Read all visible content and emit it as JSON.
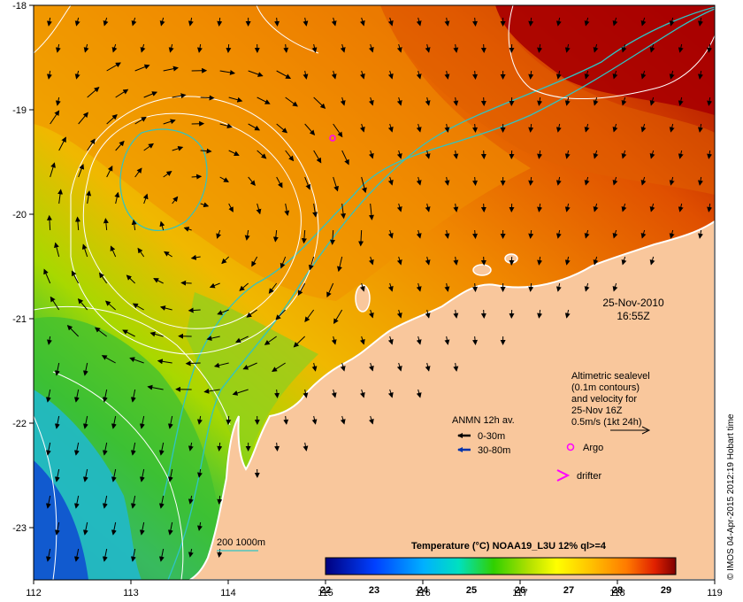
{
  "map": {
    "lon_range": [
      112,
      119
    ],
    "lat_range": [
      -23.5,
      -18
    ],
    "x_ticks": [
      "112",
      "113",
      "114",
      "115",
      "116",
      "117",
      "118",
      "119"
    ],
    "y_ticks": [
      "-18",
      "-19",
      "-20",
      "-21",
      "-22",
      "-23"
    ],
    "colors": {
      "land": "#f9c79c",
      "coast": "#ffffff",
      "isobath": "#2fc4c4",
      "contour": "#ffffff",
      "arrow_shallow": "#000000",
      "arrow_deep": "#0033aa",
      "argo": "#ff00ff",
      "drifter": "#ff00ff"
    }
  },
  "datetime": {
    "date": "25-Nov-2010",
    "time": "16:55Z"
  },
  "altimetry_note": {
    "lines": [
      "Altimetric sealevel",
      "(0.1m contours)",
      "and velocity for",
      "25-Nov 16Z",
      "0.5m/s (1kt 24h)"
    ]
  },
  "legend": {
    "anmn_title": "ANMN 12h av.",
    "shallow_label": "0-30m",
    "deep_label": "30-80m",
    "argo_label": "Argo",
    "drifter_label": "drifter",
    "isobath_label": "200  1000m"
  },
  "colorbar": {
    "title": "Temperature (°C) NOAA19_L3U 12% ql>=4",
    "ticks": [
      "22",
      "23",
      "24",
      "25",
      "26",
      "27",
      "28",
      "29"
    ],
    "range": [
      22,
      29.2
    ]
  },
  "credit": "© IMOS 04-Apr-2015 2012:19 Hobart time"
}
